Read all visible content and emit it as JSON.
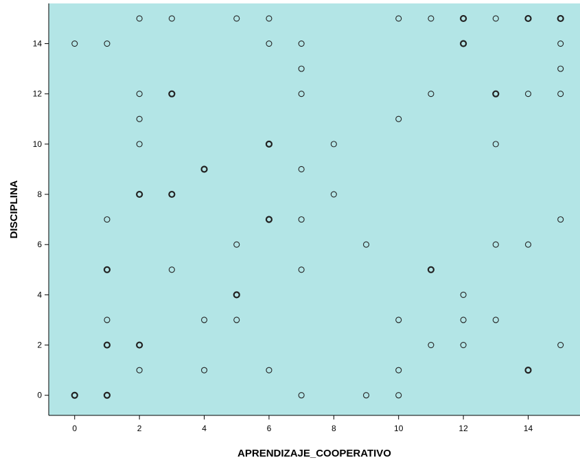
{
  "chart_data": {
    "type": "scatter",
    "xlabel": "APRENDIZAJE_COOPERATIVO",
    "ylabel": "DISCIPLINA",
    "xlim": [
      -0.8,
      15.6
    ],
    "ylim": [
      -0.8,
      15.6
    ],
    "x_ticks": [
      0,
      2,
      4,
      6,
      8,
      10,
      12,
      14
    ],
    "y_ticks": [
      0,
      2,
      4,
      6,
      8,
      10,
      12,
      14
    ],
    "grid": false,
    "legend": "none",
    "colors": {
      "plot_background": "#b3e5e6",
      "marker_stroke": "#222222",
      "axis": "#000000"
    },
    "points": [
      {
        "x": 2,
        "y": 15
      },
      {
        "x": 3,
        "y": 15
      },
      {
        "x": 5,
        "y": 15
      },
      {
        "x": 6,
        "y": 15
      },
      {
        "x": 10,
        "y": 15
      },
      {
        "x": 11,
        "y": 15
      },
      {
        "x": 12,
        "y": 15,
        "bold": true
      },
      {
        "x": 13,
        "y": 15
      },
      {
        "x": 14,
        "y": 15,
        "bold": true
      },
      {
        "x": 15,
        "y": 15,
        "bold": true
      },
      {
        "x": 0,
        "y": 14
      },
      {
        "x": 1,
        "y": 14
      },
      {
        "x": 6,
        "y": 14
      },
      {
        "x": 7,
        "y": 14
      },
      {
        "x": 12,
        "y": 14,
        "bold": true
      },
      {
        "x": 15,
        "y": 14
      },
      {
        "x": 7,
        "y": 13
      },
      {
        "x": 15,
        "y": 13
      },
      {
        "x": 2,
        "y": 12
      },
      {
        "x": 3,
        "y": 12,
        "bold": true
      },
      {
        "x": 7,
        "y": 12
      },
      {
        "x": 11,
        "y": 12
      },
      {
        "x": 13,
        "y": 12,
        "bold": true
      },
      {
        "x": 14,
        "y": 12
      },
      {
        "x": 15,
        "y": 12
      },
      {
        "x": 2,
        "y": 11
      },
      {
        "x": 10,
        "y": 11
      },
      {
        "x": 2,
        "y": 10
      },
      {
        "x": 6,
        "y": 10,
        "bold": true
      },
      {
        "x": 8,
        "y": 10
      },
      {
        "x": 13,
        "y": 10
      },
      {
        "x": 4,
        "y": 9,
        "bold": true
      },
      {
        "x": 7,
        "y": 9
      },
      {
        "x": 2,
        "y": 8,
        "bold": true
      },
      {
        "x": 3,
        "y": 8,
        "bold": true
      },
      {
        "x": 8,
        "y": 8
      },
      {
        "x": 1,
        "y": 7
      },
      {
        "x": 6,
        "y": 7,
        "bold": true
      },
      {
        "x": 7,
        "y": 7
      },
      {
        "x": 15,
        "y": 7
      },
      {
        "x": 5,
        "y": 6
      },
      {
        "x": 9,
        "y": 6
      },
      {
        "x": 13,
        "y": 6
      },
      {
        "x": 14,
        "y": 6
      },
      {
        "x": 1,
        "y": 5,
        "bold": true
      },
      {
        "x": 3,
        "y": 5
      },
      {
        "x": 7,
        "y": 5
      },
      {
        "x": 11,
        "y": 5,
        "bold": true
      },
      {
        "x": 5,
        "y": 4,
        "bold": true
      },
      {
        "x": 12,
        "y": 4
      },
      {
        "x": 1,
        "y": 3
      },
      {
        "x": 4,
        "y": 3
      },
      {
        "x": 5,
        "y": 3
      },
      {
        "x": 10,
        "y": 3
      },
      {
        "x": 12,
        "y": 3
      },
      {
        "x": 13,
        "y": 3
      },
      {
        "x": 1,
        "y": 2,
        "bold": true
      },
      {
        "x": 2,
        "y": 2,
        "bold": true
      },
      {
        "x": 11,
        "y": 2
      },
      {
        "x": 12,
        "y": 2
      },
      {
        "x": 15,
        "y": 2
      },
      {
        "x": 2,
        "y": 1
      },
      {
        "x": 4,
        "y": 1
      },
      {
        "x": 6,
        "y": 1
      },
      {
        "x": 10,
        "y": 1
      },
      {
        "x": 14,
        "y": 1,
        "bold": true
      },
      {
        "x": 0,
        "y": 0,
        "bold": true
      },
      {
        "x": 1,
        "y": 0,
        "bold": true
      },
      {
        "x": 7,
        "y": 0
      },
      {
        "x": 9,
        "y": 0
      },
      {
        "x": 10,
        "y": 0
      }
    ]
  }
}
